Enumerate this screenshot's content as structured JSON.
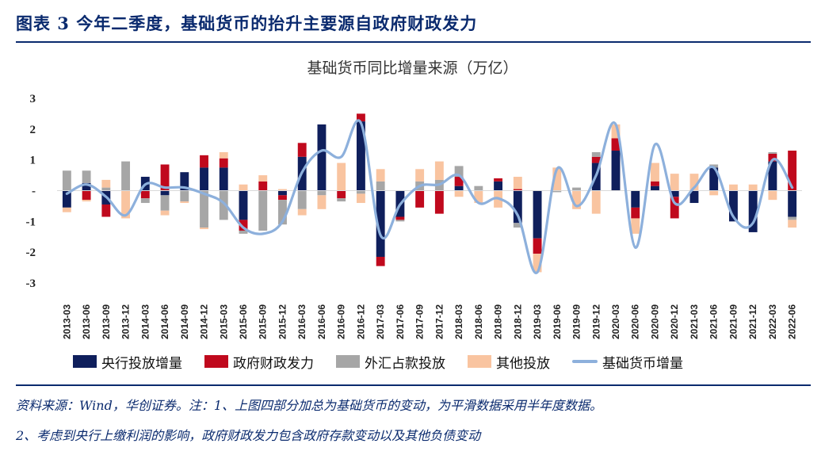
{
  "header": {
    "title": "图表 3   今年二季度，基础货币的抬升主要源自政府财政发力"
  },
  "footnotes": {
    "line1": "资料来源：Wind，华创证券。注：1、上图四部分加总为基础货币的变动，为平滑数据采用半年度数据。",
    "line2": "2、考虑到央行上缴利润的影响，政府财政发力包含政府存款变动以及其他负债变动"
  },
  "chart_data": {
    "type": "bar",
    "stacked": true,
    "title": "基础货币同比增量来源（万亿）",
    "xlabel": "",
    "ylabel": "",
    "ylim": [
      -3,
      3
    ],
    "yticks": [
      -3,
      -2,
      -1,
      0,
      1,
      2,
      3
    ],
    "ytick_labels": [
      "-3",
      "-2",
      "-1",
      "-",
      "1",
      "2",
      "3"
    ],
    "categories": [
      "2013-03",
      "2013-06",
      "2013-09",
      "2013-12",
      "2014-03",
      "2014-06",
      "2014-09",
      "2014-12",
      "2015-03",
      "2015-06",
      "2015-09",
      "2015-12",
      "2016-03",
      "2016-06",
      "2016-09",
      "2016-12",
      "2017-03",
      "2017-06",
      "2017-09",
      "2017-12",
      "2018-03",
      "2018-06",
      "2018-09",
      "2018-12",
      "2019-03",
      "2019-06",
      "2019-09",
      "2019-12",
      "2020-03",
      "2020-06",
      "2020-09",
      "2020-12",
      "2021-03",
      "2021-06",
      "2021-09",
      "2021-12",
      "2022-03",
      "2022-06"
    ],
    "series": [
      {
        "name": "央行投放增量",
        "color": "#0f1f5c",
        "values": [
          -0.55,
          0.25,
          -0.45,
          0.0,
          0.45,
          -0.15,
          0.6,
          0.75,
          0.75,
          -0.95,
          0.0,
          -0.15,
          1.1,
          2.15,
          0.0,
          2.25,
          -2.15,
          -0.85,
          0.0,
          0.0,
          0.15,
          0.0,
          0.3,
          -1.05,
          -1.55,
          0.0,
          0.0,
          0.9,
          1.3,
          -0.55,
          0.15,
          -0.2,
          -0.4,
          0.75,
          -1.0,
          -1.35,
          0.95,
          -0.85
        ]
      },
      {
        "name": "政府财政发力",
        "color": "#c0091d",
        "values": [
          0.0,
          -0.3,
          -0.4,
          0.0,
          -0.25,
          0.85,
          0.0,
          0.4,
          0.3,
          -0.35,
          0.3,
          -0.15,
          0.45,
          0.0,
          -0.25,
          0.25,
          -0.3,
          -0.1,
          -0.55,
          -0.75,
          0.3,
          0.0,
          0.1,
          0.05,
          -0.5,
          0.0,
          0.0,
          0.2,
          0.4,
          -0.35,
          0.15,
          -0.7,
          0.0,
          0.0,
          0.0,
          0.0,
          0.25,
          1.3
        ]
      },
      {
        "name": "外汇占款投放",
        "color": "#a6a6a6",
        "values": [
          0.65,
          0.4,
          0.1,
          0.95,
          -0.15,
          -0.5,
          -0.35,
          -1.2,
          -0.95,
          -0.1,
          -1.3,
          -0.8,
          -0.6,
          -0.15,
          -0.1,
          -0.1,
          0.3,
          -0.05,
          0.3,
          0.35,
          0.35,
          0.15,
          0.0,
          -0.15,
          0.0,
          -0.05,
          0.1,
          0.15,
          0.0,
          0.0,
          0.0,
          0.0,
          0.0,
          0.1,
          0.0,
          0.0,
          0.05,
          -0.1
        ]
      },
      {
        "name": "其他投放",
        "color": "#f9c4a0",
        "values": [
          -0.15,
          -0.05,
          0.25,
          -0.9,
          0.0,
          -0.15,
          -0.05,
          -0.05,
          0.2,
          0.2,
          0.2,
          0.05,
          -0.2,
          -0.45,
          0.9,
          -0.3,
          0.4,
          0.0,
          0.4,
          0.6,
          -0.2,
          -0.4,
          -0.55,
          0.4,
          -0.6,
          0.75,
          -0.6,
          -0.75,
          0.45,
          -0.5,
          0.6,
          0.55,
          0.55,
          -0.15,
          0.2,
          0.2,
          -0.3,
          -0.25
        ]
      }
    ],
    "line_series": {
      "name": "基础货币增量",
      "color": "#8db0dc",
      "values": [
        -0.1,
        0.2,
        -0.2,
        -0.8,
        0.2,
        0.1,
        0.1,
        -0.1,
        -0.4,
        -1.2,
        -1.4,
        -1.0,
        0.6,
        1.3,
        1.1,
        2.2,
        -1.45,
        -0.45,
        0.15,
        0.2,
        0.5,
        -0.4,
        -0.25,
        -0.8,
        -2.65,
        0.7,
        -0.5,
        0.5,
        2.15,
        -1.85,
        1.5,
        -0.4,
        0.1,
        0.75,
        -0.85,
        -1.05,
        1.0,
        0.1
      ]
    }
  }
}
